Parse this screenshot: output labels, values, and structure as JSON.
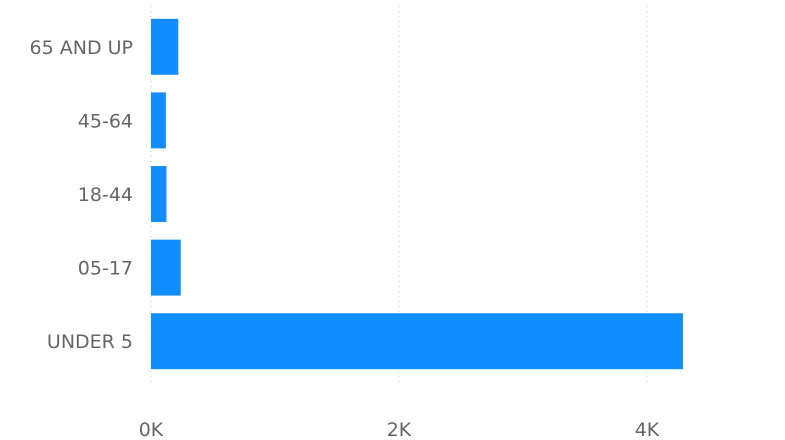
{
  "chart_data": {
    "type": "bar",
    "orientation": "horizontal",
    "categories": [
      "65 AND UP",
      "45-64",
      "18-44",
      "05-17",
      "UNDER 5"
    ],
    "values": [
      220,
      120,
      125,
      240,
      4290
    ],
    "xticks": [
      0,
      2000,
      4000
    ],
    "xtick_labels": [
      "0K",
      "2K",
      "4K"
    ],
    "xlim": [
      0,
      5000
    ],
    "grid": "vertical dotted",
    "legend": "none",
    "colors": {
      "bar": "#118DFF",
      "text": "#666666",
      "grid": "#c8c8c8"
    }
  }
}
